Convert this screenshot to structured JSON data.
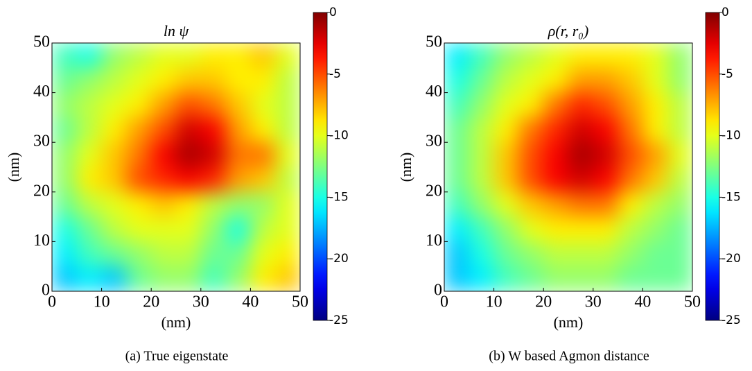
{
  "chart_data": [
    {
      "type": "heatmap",
      "title": "ln ψ",
      "xlabel": "(nm)",
      "ylabel": "(nm)",
      "caption": "(a) True eigenstate",
      "xlim": [
        0,
        50
      ],
      "ylim": [
        0,
        50
      ],
      "xticks": [
        0,
        10,
        20,
        30,
        40,
        50
      ],
      "yticks": [
        0,
        10,
        20,
        30,
        40,
        50
      ],
      "colormap": "jet",
      "clim": [
        -25,
        0
      ],
      "cticks": [
        0,
        -5,
        -10,
        -15,
        -20,
        -25
      ],
      "values": [
        [
          -14,
          -15,
          -12,
          -11,
          -10,
          -10,
          -9,
          -9,
          -8,
          -10
        ],
        [
          -13,
          -12,
          -11,
          -10,
          -9,
          -8,
          -8,
          -9,
          -9,
          -11
        ],
        [
          -12,
          -11,
          -10,
          -9,
          -7,
          -5,
          -6,
          -8,
          -10,
          -11
        ],
        [
          -13,
          -11,
          -9,
          -7,
          -5,
          -2,
          -3,
          -7,
          -9,
          -11
        ],
        [
          -12,
          -10,
          -8,
          -6,
          -3,
          -1,
          -2,
          -6,
          -6,
          -10
        ],
        [
          -12,
          -9,
          -8,
          -5,
          -4,
          -3,
          -4,
          -7,
          -8,
          -11
        ],
        [
          -13,
          -11,
          -10,
          -9,
          -8,
          -9,
          -11,
          -12,
          -12,
          -10
        ],
        [
          -15,
          -13,
          -11,
          -10,
          -10,
          -10,
          -12,
          -15,
          -11,
          -10
        ],
        [
          -16,
          -14,
          -13,
          -12,
          -11,
          -11,
          -13,
          -13,
          -10,
          -9
        ],
        [
          -17,
          -16,
          -17,
          -13,
          -12,
          -12,
          -14,
          -12,
          -9,
          -8
        ]
      ]
    },
    {
      "type": "heatmap",
      "title": "ρ(r, r₀)",
      "xlabel": "(nm)",
      "ylabel": "(nm)",
      "caption": "(b) W based Agmon distance",
      "xlim": [
        0,
        50
      ],
      "ylim": [
        0,
        50
      ],
      "xticks": [
        0,
        10,
        20,
        30,
        40,
        50
      ],
      "yticks": [
        0,
        10,
        20,
        30,
        40,
        50
      ],
      "colormap": "jet",
      "clim": [
        -25,
        0
      ],
      "cticks": [
        0,
        -5,
        -10,
        -15,
        -20,
        -25
      ],
      "values": [
        [
          -16,
          -14,
          -12,
          -11,
          -10,
          -9,
          -9,
          -9,
          -10,
          -12
        ],
        [
          -15,
          -13,
          -11,
          -10,
          -9,
          -7,
          -7,
          -8,
          -10,
          -12
        ],
        [
          -14,
          -12,
          -10,
          -9,
          -6,
          -4,
          -5,
          -7,
          -9,
          -11
        ],
        [
          -13,
          -11,
          -9,
          -6,
          -4,
          -2,
          -3,
          -6,
          -9,
          -11
        ],
        [
          -13,
          -11,
          -8,
          -5,
          -3,
          -1,
          -2,
          -5,
          -7,
          -10
        ],
        [
          -13,
          -11,
          -8,
          -5,
          -3,
          -2,
          -3,
          -6,
          -8,
          -11
        ],
        [
          -14,
          -12,
          -10,
          -8,
          -7,
          -6,
          -6,
          -9,
          -11,
          -12
        ],
        [
          -16,
          -14,
          -12,
          -10,
          -9,
          -9,
          -9,
          -11,
          -12,
          -13
        ],
        [
          -17,
          -15,
          -13,
          -12,
          -11,
          -11,
          -11,
          -12,
          -13,
          -13
        ],
        [
          -17,
          -16,
          -14,
          -13,
          -12,
          -12,
          -12,
          -13,
          -13,
          -13
        ]
      ]
    }
  ]
}
